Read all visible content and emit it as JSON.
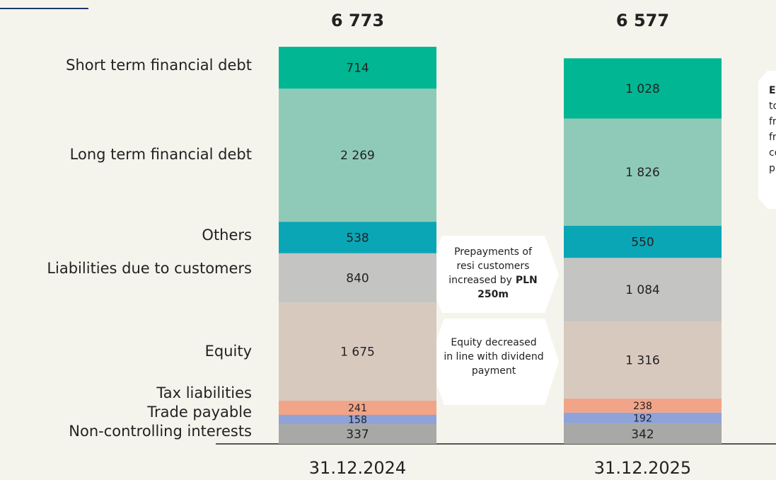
{
  "chart_data": {
    "type": "stacked_bar",
    "categories": [
      "31.12.2024",
      "31.12.2025"
    ],
    "series": [
      {
        "name": "Non-controlling interests",
        "color": "#a8a8a6",
        "values": [
          337,
          342
        ]
      },
      {
        "name": "Trade payable",
        "color": "#8fa3d8",
        "values": [
          158,
          192
        ]
      },
      {
        "name": "Tax liabilities",
        "color": "#f1a488",
        "values": [
          241,
          238
        ]
      },
      {
        "name": "Equity",
        "color": "#d8c9bf",
        "values": [
          1675,
          1316
        ],
        "value_labels": [
          "1 675",
          "1 316"
        ]
      },
      {
        "name": "Liabilities due to customers",
        "color": "#c4c4c2",
        "values": [
          840,
          1084
        ],
        "value_labels": [
          "840",
          "1 084"
        ]
      },
      {
        "name": "Others",
        "color": "#0ba6b6",
        "values": [
          538,
          550
        ]
      },
      {
        "name": "Long term financial debt",
        "color": "#8fcab8",
        "values": [
          2269,
          1826
        ],
        "value_labels": [
          "2 269",
          "1 826"
        ]
      },
      {
        "name": "Short term financial debt",
        "color": "#00b693",
        "values": [
          714,
          1028
        ],
        "value_labels": [
          "714",
          "1 028"
        ]
      }
    ],
    "totals": {
      "values": [
        6773,
        6577
      ],
      "value_labels": [
        "6 773",
        "6 577"
      ]
    },
    "annotations": [
      {
        "lines": [
          [
            {
              "text": "Prepayments of"
            }
          ],
          [
            {
              "text": "resi customers"
            }
          ],
          [
            {
              "text": "increased by"
            },
            {
              "text": "PLN",
              "bold": true
            }
          ],
          [
            {
              "text": "250m",
              "bold": true
            }
          ]
        ]
      },
      {
        "lines": [
          [
            {
              "text": "Equity decreased"
            }
          ],
          [
            {
              "text": "in line with dividend"
            }
          ],
          [
            {
              "text": "payment"
            }
          ]
        ]
      },
      {
        "lines": [
          [
            {
              "text": "Ea",
              "bold": true
            }
          ],
          [
            {
              "text": "to"
            }
          ],
          [
            {
              "text": "fr"
            }
          ],
          [
            {
              "text": "fr"
            }
          ],
          [
            {
              "text": "co"
            }
          ],
          [
            {
              "text": "pr"
            }
          ]
        ]
      }
    ]
  }
}
